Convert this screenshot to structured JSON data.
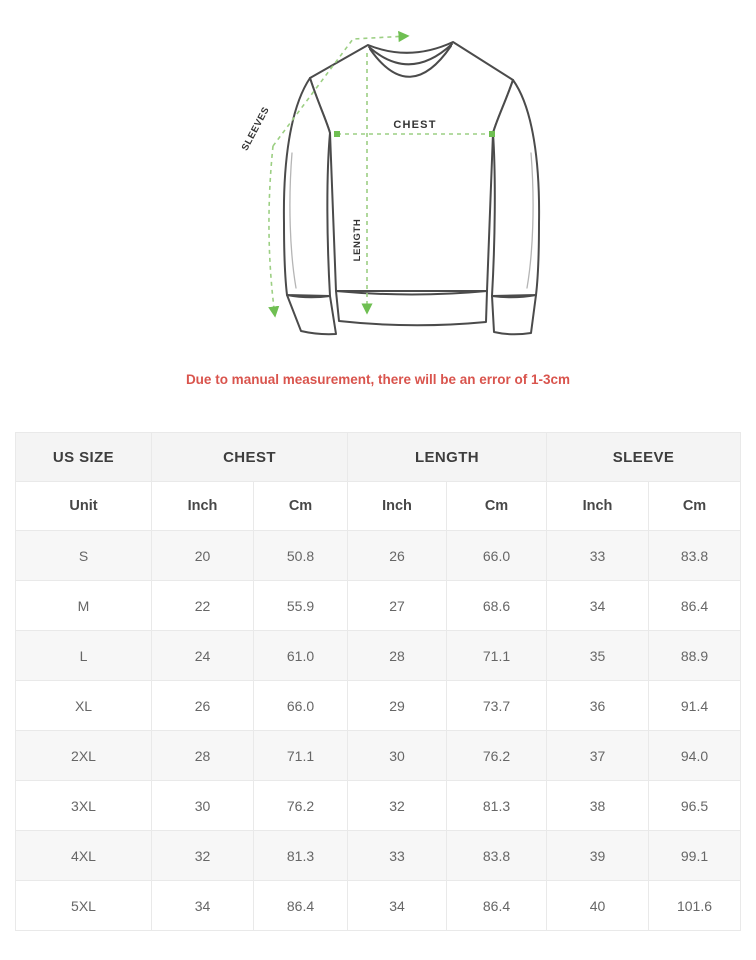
{
  "colors": {
    "accent_green": "#6fbf52",
    "accent_green_light": "#9ccf83",
    "outline": "#4b4b4b",
    "note_red": "#d9544d"
  },
  "diagram": {
    "labels": {
      "sleeves": "SLEEVES",
      "chest": "CHEST",
      "length": "LENGTH"
    }
  },
  "note": {
    "text": "Due to manual measurement, there will be an error of 1-3cm"
  },
  "size_table": {
    "group_headers": [
      "US SIZE",
      "CHEST",
      "LENGTH",
      "SLEEVE"
    ],
    "unit_row": [
      "Unit",
      "Inch",
      "Cm",
      "Inch",
      "Cm",
      "Inch",
      "Cm"
    ],
    "rows": [
      [
        "S",
        "20",
        "50.8",
        "26",
        "66.0",
        "33",
        "83.8"
      ],
      [
        "M",
        "22",
        "55.9",
        "27",
        "68.6",
        "34",
        "86.4"
      ],
      [
        "L",
        "24",
        "61.0",
        "28",
        "71.1",
        "35",
        "88.9"
      ],
      [
        "XL",
        "26",
        "66.0",
        "29",
        "73.7",
        "36",
        "91.4"
      ],
      [
        "2XL",
        "28",
        "71.1",
        "30",
        "76.2",
        "37",
        "94.0"
      ],
      [
        "3XL",
        "30",
        "76.2",
        "32",
        "81.3",
        "38",
        "96.5"
      ],
      [
        "4XL",
        "32",
        "81.3",
        "33",
        "83.8",
        "39",
        "99.1"
      ],
      [
        "5XL",
        "34",
        "86.4",
        "34",
        "86.4",
        "40",
        "101.6"
      ]
    ]
  }
}
